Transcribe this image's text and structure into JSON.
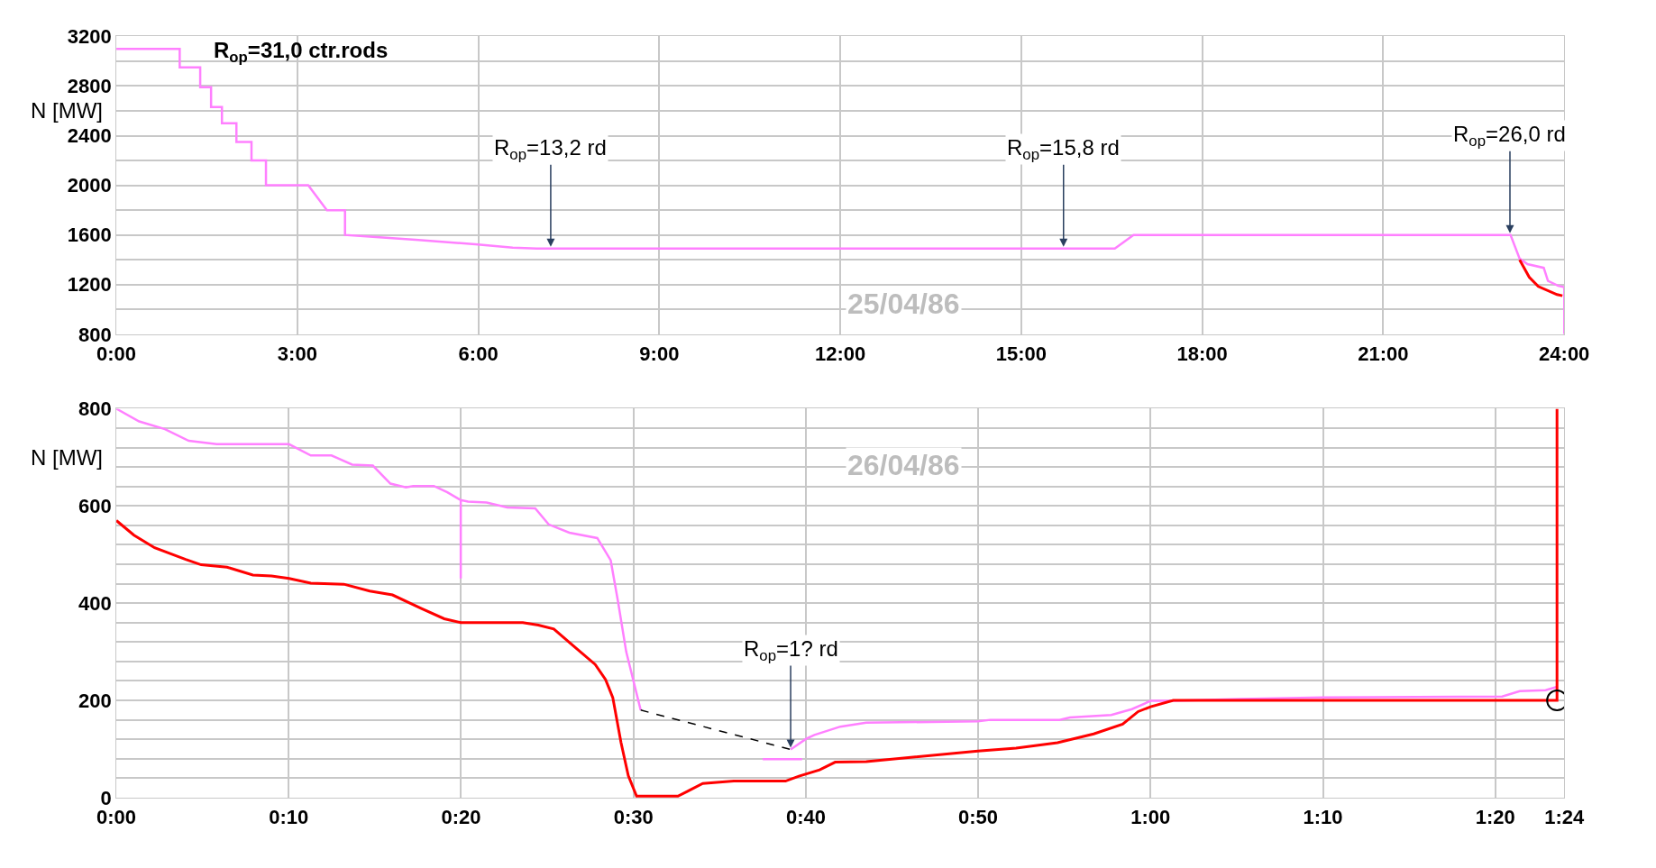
{
  "chart_data": [
    {
      "type": "line",
      "ylabel": "N [MW]",
      "xlim": [
        0,
        24
      ],
      "ylim": [
        800,
        3200
      ],
      "xticks": [
        {
          "value": 0,
          "label": "0:00"
        },
        {
          "value": 3,
          "label": "3:00"
        },
        {
          "value": 6,
          "label": "6:00"
        },
        {
          "value": 9,
          "label": "9:00"
        },
        {
          "value": 12,
          "label": "12:00"
        },
        {
          "value": 15,
          "label": "15:00"
        },
        {
          "value": 18,
          "label": "18:00"
        },
        {
          "value": 21,
          "label": "21:00"
        },
        {
          "value": 24,
          "label": "24:00"
        }
      ],
      "yticks": [
        800,
        {
          "value": 1000,
          "label": null
        },
        1200,
        {
          "value": 1400,
          "label": null
        },
        1600,
        {
          "value": 1800,
          "label": null
        },
        2000,
        {
          "value": 2200,
          "label": null
        },
        2400,
        {
          "value": 2600,
          "label": null
        },
        2800,
        {
          "value": 3000,
          "label": null
        },
        3200
      ],
      "grid": true,
      "marker": "none",
      "line_style": "solid",
      "series": [
        {
          "color": "#ff80ff",
          "x": [
            0,
            1.05,
            1.05,
            1.39,
            1.39,
            1.57,
            1.57,
            1.75,
            1.75,
            1.99,
            1.99,
            2.24,
            2.24,
            2.48,
            2.48,
            3.18,
            3.49,
            3.79,
            3.79,
            4.25,
            4.96,
            5.95,
            6.57,
            6.97,
            16.55,
            16.86,
            23.11,
            23.26,
            23.39,
            23.66,
            23.73,
            23.9,
            24,
            24
          ],
          "values": [
            3100,
            3100,
            2950,
            2950,
            2790,
            2790,
            2630,
            2630,
            2500,
            2500,
            2350,
            2350,
            2200,
            2200,
            2000,
            2000,
            1800,
            1800,
            1600,
            1585,
            1562,
            1525,
            1498,
            1490,
            1490,
            1600,
            1600,
            1410,
            1365,
            1335,
            1230,
            1190,
            1180,
            800
          ]
        },
        {
          "color": "#ff0000",
          "x": [
            23.26,
            23.42,
            23.57,
            23.88,
            23.97
          ],
          "values": [
            1400,
            1260,
            1185,
            1120,
            1110
          ]
        }
      ],
      "annotations": [
        "R$_{op}$=31,0 ctr.rods",
        "25/04/86",
        {
          "text": "R$_{op}$=13,2 rd",
          "x": 7.2,
          "y": 1490
        },
        {
          "text": "R$_{op}$=15,8 rd",
          "x": 15.7,
          "y": 1490
        },
        {
          "text": "R$_{op}$=26,0 rd",
          "x": 23.1,
          "y": 1600
        }
      ]
    },
    {
      "type": "line",
      "ylabel": "N [MW]",
      "xlim": [
        0,
        1.4
      ],
      "ylim": [
        0,
        800
      ],
      "xticks": [
        {
          "value": 0,
          "label": "0:00"
        },
        {
          "value": 0.1667,
          "label": "0:10"
        },
        {
          "value": 0.3333,
          "label": "0:20"
        },
        {
          "value": 0.5,
          "label": "0:30"
        },
        {
          "value": 0.6667,
          "label": "0:40"
        },
        {
          "value": 0.8333,
          "label": "0:50"
        },
        {
          "value": 1,
          "label": "1:00"
        },
        {
          "value": 1.1667,
          "label": "1:10"
        },
        {
          "value": 1.3333,
          "label": "1:20"
        },
        {
          "value": 1.4,
          "label": "1:24"
        }
      ],
      "yticks": [
        0,
        {
          "value": 40,
          "label": null
        },
        {
          "value": 80,
          "label": null
        },
        {
          "value": 120,
          "label": null
        },
        {
          "value": 160,
          "label": null
        },
        200,
        {
          "value": 240,
          "label": null
        },
        {
          "value": 280,
          "label": null
        },
        {
          "value": 320,
          "label": null
        },
        {
          "value": 360,
          "label": null
        },
        400,
        {
          "value": 440,
          "label": null
        },
        {
          "value": 480,
          "label": null
        },
        {
          "value": 520,
          "label": null
        },
        {
          "value": 560,
          "label": null
        },
        600,
        {
          "value": 640,
          "label": null
        },
        {
          "value": 680,
          "label": null
        },
        {
          "value": 720,
          "label": null
        },
        {
          "value": 760,
          "label": null
        },
        800
      ],
      "grid": true,
      "marker": "none",
      "line_style": "solid",
      "series": [
        {
          "color": "#ff80ff",
          "x": [
            0,
            0.022,
            0.047,
            0.07,
            0.097,
            0.167,
            0.188,
            0.208,
            0.228,
            0.248,
            0.265,
            0.28,
            0.287,
            0.307,
            0.32,
            0.333,
            0.333,
            0.333,
            0.34,
            0.358,
            0.378,
            0.405,
            0.418,
            0.438,
            0.465,
            0.478,
            0.485,
            0.493,
            0.507,
            0.55,
            0.652,
            0.667,
            0.675,
            0.7,
            0.725,
            0.833,
            0.845,
            0.912,
            0.922,
            0.962,
            0.982,
            1.0,
            1.022,
            1.087,
            1.167,
            1.34,
            1.357,
            1.382,
            1.393
          ],
          "values": [
            800,
            774,
            758,
            734,
            727,
            727,
            704,
            704,
            685,
            683,
            646,
            638,
            641,
            641,
            628,
            612,
            451,
            612,
            609,
            607,
            597,
            595,
            562,
            545,
            534,
            488,
            404,
            300,
            180,
            null,
            99,
            121,
            129,
            146,
            154,
            157,
            160,
            160,
            165,
            170,
            182,
            199,
            199,
            203,
            206,
            208,
            219,
            221,
            228
          ]
        },
        {
          "color": "#ff80ff",
          "x": [
            0.625,
            0.663
          ],
          "values": [
            79,
            79
          ]
        },
        {
          "color": "#ff0000",
          "x": [
            0,
            0.017,
            0.037,
            0.067,
            0.082,
            0.107,
            0.132,
            0.15,
            0.167,
            0.188,
            0.22,
            0.245,
            0.267,
            0.295,
            0.317,
            0.333,
            0.393,
            0.408,
            0.423,
            0.443,
            0.463,
            0.473,
            0.48,
            0.488,
            0.495,
            0.503,
            0.543,
            0.567,
            0.597,
            0.647,
            0.66,
            0.68,
            0.695,
            0.725,
            0.833,
            0.87,
            0.91,
            0.945,
            0.973,
            0.988,
            1.0,
            1.022,
            1.393,
            1.393
          ],
          "values": [
            570,
            540,
            514,
            490,
            479,
            474,
            458,
            456,
            451,
            441,
            439,
            425,
            417,
            389,
            368,
            360,
            360,
            355,
            347,
            310,
            274,
            243,
            206,
            113,
            45,
            3,
            3,
            29,
            34,
            34,
            44,
            57,
            73,
            74,
            96,
            102,
            113,
            131,
            151,
            177,
            187,
            200,
            200,
            800
          ]
        },
        {
          "color": "#000000",
          "line_style": "dashed",
          "x": [
            0.507,
            0.652
          ],
          "values": [
            180,
            99
          ]
        },
        {
          "color": "#000000",
          "type": "scatter",
          "marker": "circle",
          "x": [
            1.393
          ],
          "values": [
            200
          ]
        }
      ],
      "annotations": [
        "26/04/86",
        {
          "text": "R$_{op}$=1? rd",
          "x": 0.652,
          "y": 99
        }
      ]
    }
  ]
}
